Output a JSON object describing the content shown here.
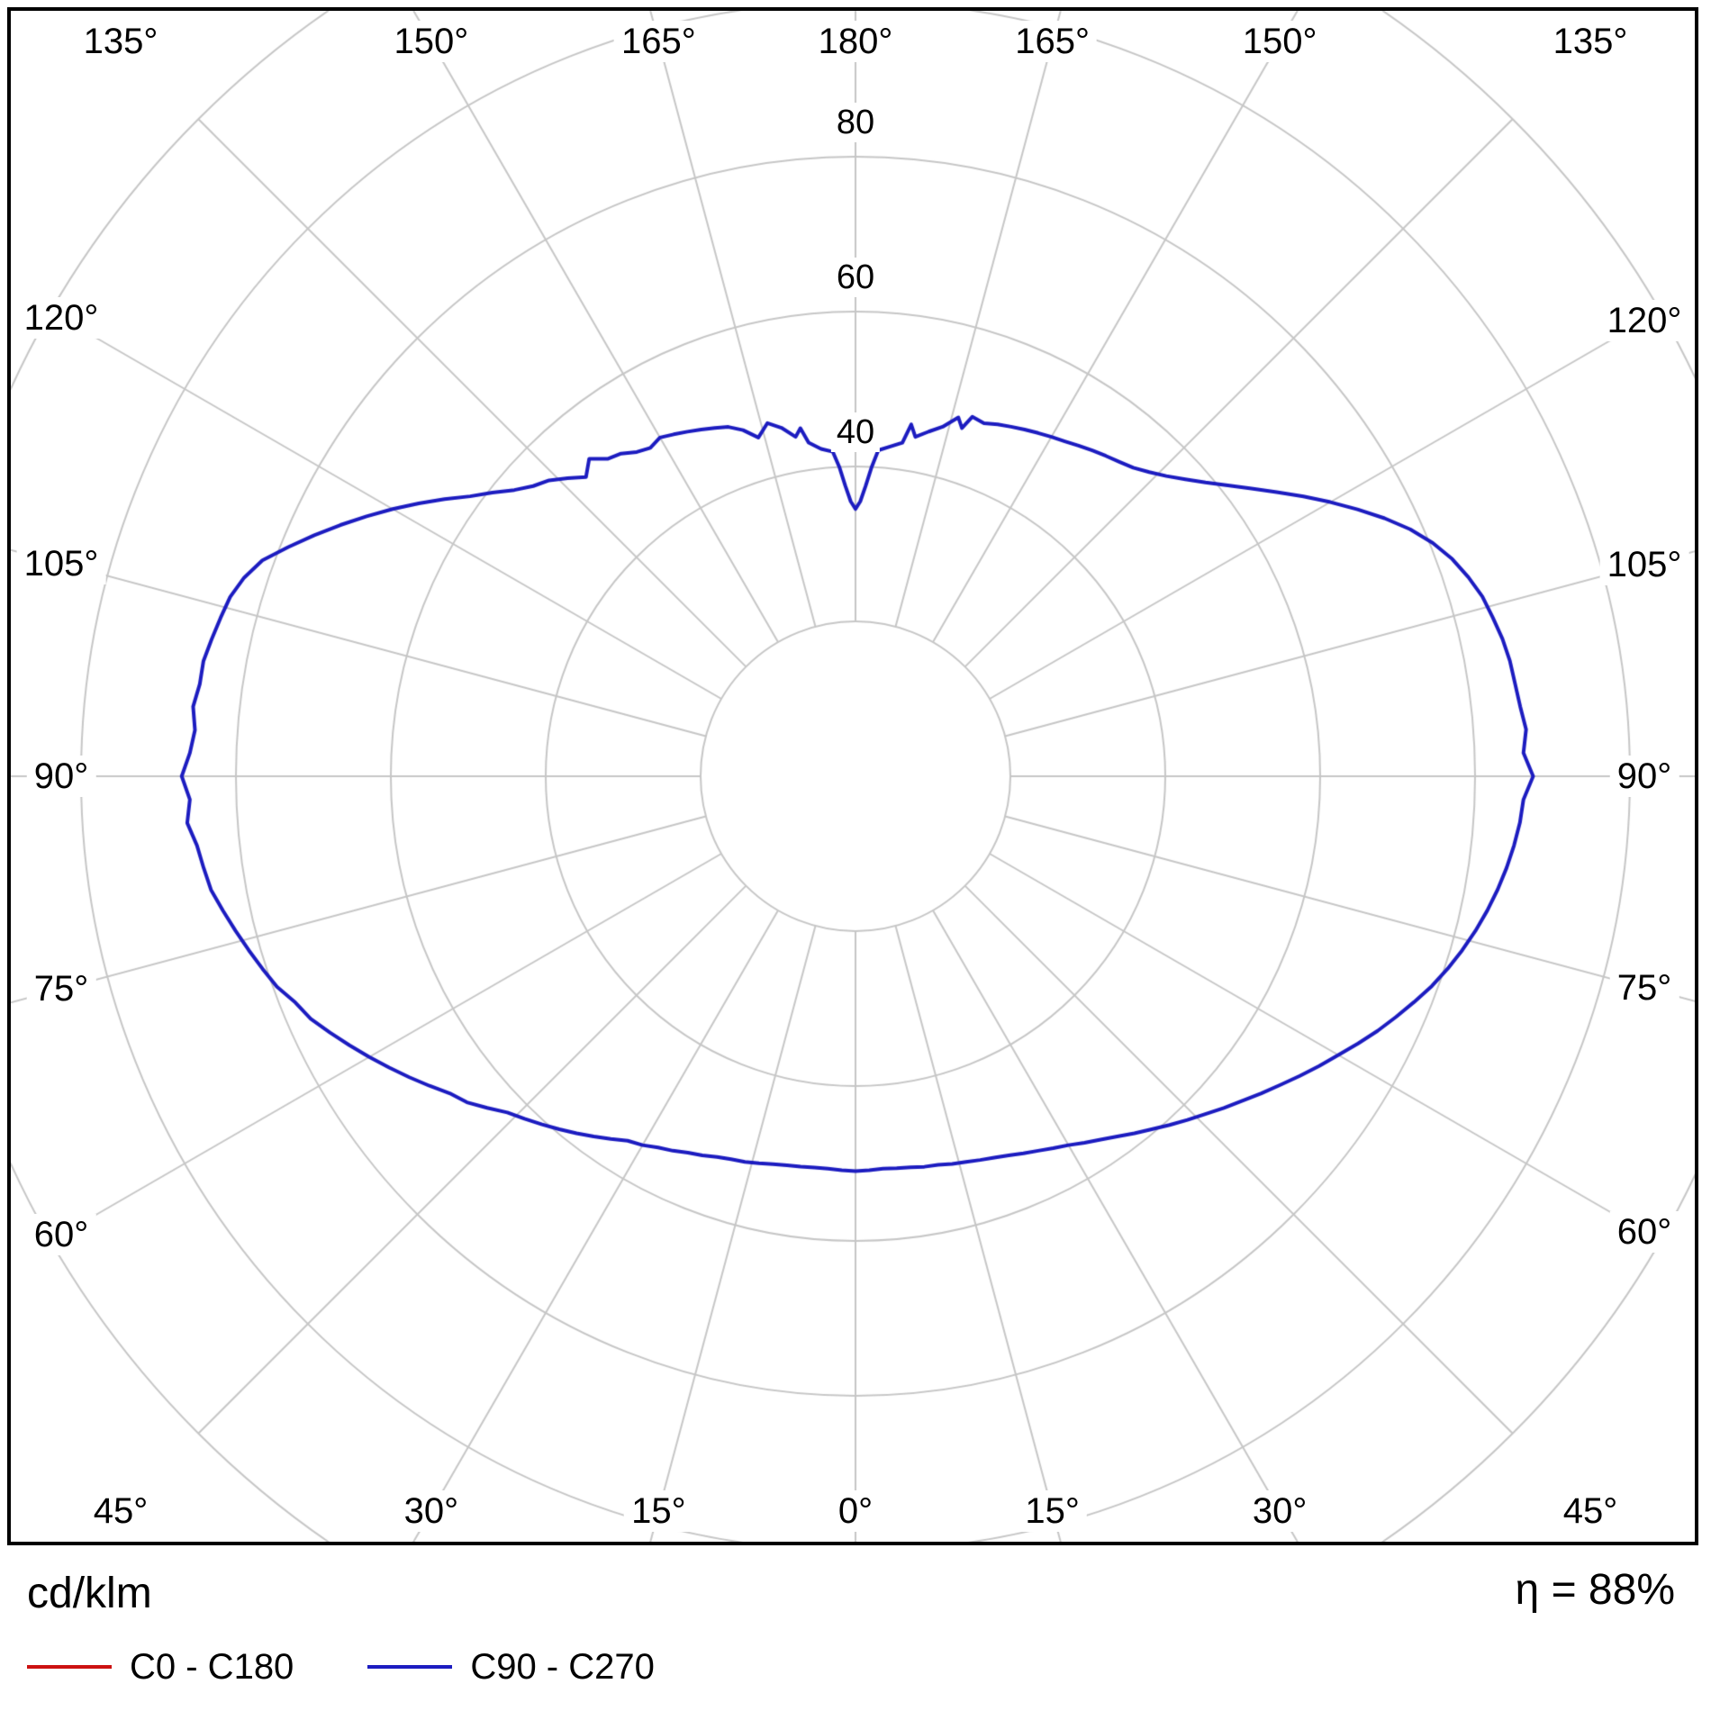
{
  "chart_data": {
    "type": "line",
    "subtype": "polar-photometric-curve",
    "unit_label": "cd/klm",
    "efficiency_label": "η = 88%",
    "angle_axis": {
      "zero_direction": "down",
      "tick_step_deg": 15,
      "max_deg": 180,
      "tick_labels": [
        "0°",
        "15°",
        "30°",
        "45°",
        "60°",
        "75°",
        "90°",
        "105°",
        "120°",
        "135°",
        "150°",
        "165°",
        "180°"
      ]
    },
    "radial_axis": {
      "units": "cd/klm",
      "ring_step": 20,
      "rings": [
        20,
        40,
        60,
        80,
        100,
        120
      ],
      "labeled_rings": [
        40,
        60,
        80
      ],
      "ring_labels": [
        "40",
        "60",
        "80"
      ]
    },
    "grid": {
      "color": "#c6c6c6",
      "spoke_inner_ring": 20,
      "spoke_outer_ring": 120
    },
    "series": [
      {
        "name": "C0 - C180",
        "color": "#cc1111",
        "points": []
      },
      {
        "name": "C90 - C270",
        "color": "#1c1cc0",
        "points": [
          [
            -180,
            34.5
          ],
          [
            -179,
            35.5
          ],
          [
            -178,
            37.5
          ],
          [
            -177,
            40
          ],
          [
            -176,
            42
          ],
          [
            -174,
            42.5
          ],
          [
            -172,
            43.5
          ],
          [
            -171,
            45.5
          ],
          [
            -170,
            44.5
          ],
          [
            -168,
            46
          ],
          [
            -166,
            47
          ],
          [
            -164,
            45.5
          ],
          [
            -162,
            47
          ],
          [
            -160,
            48
          ],
          [
            -158,
            48.5
          ],
          [
            -156,
            49
          ],
          [
            -154,
            49.5
          ],
          [
            -152,
            50
          ],
          [
            -150,
            50.5
          ],
          [
            -148,
            50
          ],
          [
            -146,
            50.5
          ],
          [
            -144,
            51.5
          ],
          [
            -142,
            52
          ],
          [
            -140,
            53.5
          ],
          [
            -138,
            52
          ],
          [
            -136,
            53.5
          ],
          [
            -134,
            55
          ],
          [
            -132,
            56
          ],
          [
            -130,
            57.5
          ],
          [
            -128,
            59.5
          ],
          [
            -126,
            61.5
          ],
          [
            -124,
            64
          ],
          [
            -122,
            66.5
          ],
          [
            -120,
            69
          ],
          [
            -118,
            71.5
          ],
          [
            -116,
            74
          ],
          [
            -114,
            76.5
          ],
          [
            -112,
            79
          ],
          [
            -110,
            81.5
          ],
          [
            -108,
            83
          ],
          [
            -106,
            84
          ],
          [
            -104,
            84.5
          ],
          [
            -102,
            85
          ],
          [
            -100,
            85.5
          ],
          [
            -98,
            85.5
          ],
          [
            -96,
            86
          ],
          [
            -94,
            85.5
          ],
          [
            -92,
            86
          ],
          [
            -90,
            87
          ],
          [
            -88,
            86
          ],
          [
            -86,
            86.5
          ],
          [
            -84,
            85.5
          ],
          [
            -82,
            85
          ],
          [
            -80,
            84.5
          ],
          [
            -78,
            83.5
          ],
          [
            -76,
            82.5
          ],
          [
            -74,
            81.5
          ],
          [
            -72,
            80.5
          ],
          [
            -70,
            79.5
          ],
          [
            -68,
            78
          ],
          [
            -66,
            77
          ],
          [
            -64,
            75.5
          ],
          [
            -62,
            74
          ],
          [
            -60,
            72.5
          ],
          [
            -58,
            71
          ],
          [
            -56,
            69.5
          ],
          [
            -54,
            68
          ],
          [
            -52,
            66.5
          ],
          [
            -50,
            65.5
          ],
          [
            -48,
            64
          ],
          [
            -46,
            62.5
          ],
          [
            -44,
            61.5
          ],
          [
            -42,
            60.5
          ],
          [
            -40,
            59.5
          ],
          [
            -38,
            58.5
          ],
          [
            -36,
            57.5
          ],
          [
            -34,
            56.5
          ],
          [
            -32,
            55.5
          ],
          [
            -30,
            55
          ],
          [
            -28,
            54.3
          ],
          [
            -26,
            53.8
          ],
          [
            -24,
            53.2
          ],
          [
            -22,
            52.8
          ],
          [
            -20,
            52.3
          ],
          [
            -18,
            52
          ],
          [
            -16,
            51.8
          ],
          [
            -14,
            51.5
          ],
          [
            -12,
            51.2
          ],
          [
            -10,
            51
          ],
          [
            -8,
            50.9
          ],
          [
            -6,
            50.8
          ],
          [
            -4,
            50.8
          ],
          [
            -2,
            50.9
          ],
          [
            0,
            51
          ],
          [
            2,
            50.9
          ],
          [
            4,
            50.8
          ],
          [
            6,
            50.9
          ],
          [
            8,
            51
          ],
          [
            10,
            51.2
          ],
          [
            12,
            51.3
          ],
          [
            14,
            51.6
          ],
          [
            16,
            51.8
          ],
          [
            18,
            52.1
          ],
          [
            20,
            52.4
          ],
          [
            22,
            52.8
          ],
          [
            24,
            53.3
          ],
          [
            26,
            53.8
          ],
          [
            28,
            54.4
          ],
          [
            30,
            55
          ],
          [
            32,
            55.8
          ],
          [
            34,
            56.6
          ],
          [
            36,
            57.5
          ],
          [
            38,
            58.5
          ],
          [
            40,
            59.5
          ],
          [
            42,
            60.6
          ],
          [
            44,
            61.7
          ],
          [
            46,
            62.8
          ],
          [
            48,
            64
          ],
          [
            50,
            65.2
          ],
          [
            52,
            66.5
          ],
          [
            54,
            67.8
          ],
          [
            56,
            69.2
          ],
          [
            58,
            70.6
          ],
          [
            60,
            72
          ],
          [
            62,
            73.5
          ],
          [
            64,
            75
          ],
          [
            66,
            76.4
          ],
          [
            68,
            77.8
          ],
          [
            70,
            79.2
          ],
          [
            72,
            80.4
          ],
          [
            74,
            81.5
          ],
          [
            76,
            82.5
          ],
          [
            78,
            83.4
          ],
          [
            80,
            84.2
          ],
          [
            82,
            84.9
          ],
          [
            84,
            85.5
          ],
          [
            86,
            86
          ],
          [
            88,
            86.3
          ],
          [
            90,
            87.5
          ],
          [
            92,
            86.3
          ],
          [
            94,
            86.8
          ],
          [
            96,
            86.3
          ],
          [
            98,
            86
          ],
          [
            100,
            85.8
          ],
          [
            102,
            85.4
          ],
          [
            104,
            84.8
          ],
          [
            106,
            84.2
          ],
          [
            108,
            83.2
          ],
          [
            110,
            82
          ],
          [
            112,
            80.4
          ],
          [
            114,
            78.4
          ],
          [
            116,
            76
          ],
          [
            118,
            73.4
          ],
          [
            120,
            70.8
          ],
          [
            122,
            68.2
          ],
          [
            124,
            65.6
          ],
          [
            126,
            63.2
          ],
          [
            128,
            61
          ],
          [
            130,
            59
          ],
          [
            132,
            57.3
          ],
          [
            134,
            55.8
          ],
          [
            136,
            54.6
          ],
          [
            138,
            53.6
          ],
          [
            140,
            53
          ],
          [
            142,
            52.5
          ],
          [
            144,
            52
          ],
          [
            146,
            51.5
          ],
          [
            148,
            51
          ],
          [
            150,
            50.6
          ],
          [
            152,
            50.2
          ],
          [
            154,
            49.8
          ],
          [
            156,
            49.4
          ],
          [
            158,
            49
          ],
          [
            160,
            48.5
          ],
          [
            162,
            48.8
          ],
          [
            163,
            47
          ],
          [
            164,
            48.2
          ],
          [
            166,
            46.5
          ],
          [
            168,
            45.5
          ],
          [
            170,
            44.5
          ],
          [
            171,
            46
          ],
          [
            172,
            43.5
          ],
          [
            174,
            42.8
          ],
          [
            176,
            42.2
          ],
          [
            177,
            40
          ],
          [
            178,
            37.5
          ],
          [
            179,
            35.5
          ],
          [
            180,
            34.5
          ]
        ]
      }
    ]
  }
}
